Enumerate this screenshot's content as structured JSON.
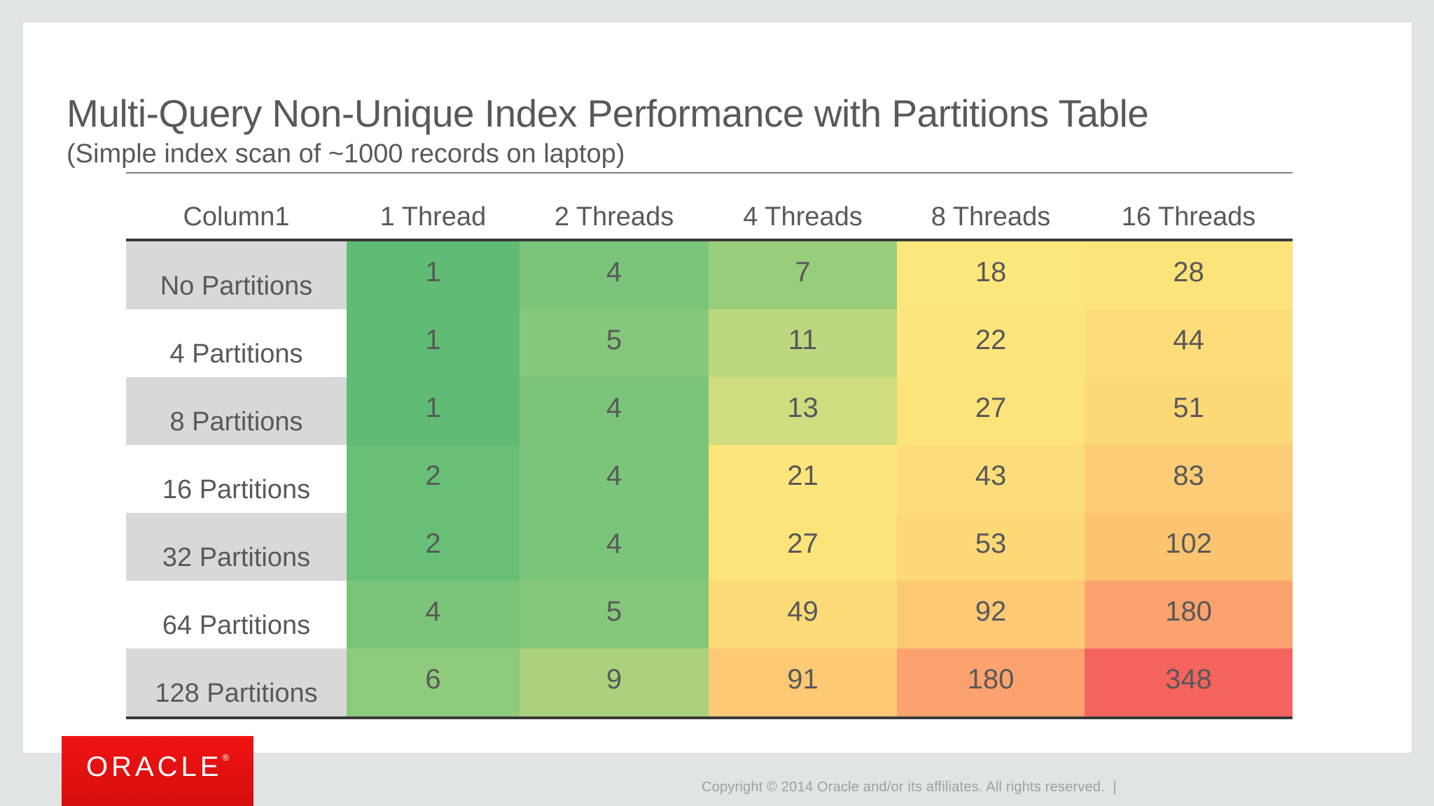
{
  "slide": {
    "title": "Multi-Query Non-Unique Index Performance with Partitions Table",
    "subtitle": "(Simple index scan of ~1000 records on laptop)"
  },
  "footer": {
    "logo_text": "ORACLE",
    "logo_mark": "®",
    "copyright": "Copyright © 2014 Oracle and/or its affiliates. All rights reserved.  |"
  },
  "colors": {
    "page_background": "#e0e4e3",
    "slide_background": "#ffffff",
    "text": "#595959",
    "table_rule": "#3a3a3a",
    "title_rule": "#7f7f7f",
    "row_label_gray": "#d8d8d8",
    "oracle_red": "#e31212",
    "copyright_text": "#9aa2a2",
    "heat_scale_low": "#60bc74",
    "heat_scale_mid": "#fce77c",
    "heat_scale_high": "#f6645f"
  },
  "chart_data": {
    "type": "heatmap",
    "title": "Multi-Query Non-Unique Index Performance with Partitions Table",
    "subtitle": "(Simple index scan of ~1000 records on laptop)",
    "columns": [
      "Column1",
      "1 Thread",
      "2 Threads",
      "4 Threads",
      "8 Threads",
      "16 Threads"
    ],
    "row_labels": [
      "No Partitions",
      "4 Partitions",
      "8 Partitions",
      "16 Partitions",
      "32 Partitions",
      "64 Partitions",
      "128 Partitions"
    ],
    "values": [
      [
        1,
        4,
        7,
        18,
        28
      ],
      [
        1,
        5,
        11,
        22,
        44
      ],
      [
        1,
        4,
        13,
        27,
        51
      ],
      [
        2,
        4,
        21,
        43,
        83
      ],
      [
        2,
        4,
        27,
        53,
        102
      ],
      [
        4,
        5,
        49,
        92,
        180
      ],
      [
        6,
        9,
        91,
        180,
        348
      ]
    ],
    "value_range": [
      1,
      348
    ],
    "legend": "none",
    "grid": "off",
    "colorscale": {
      "low": "#60bc74",
      "mid": "#fce77c",
      "high": "#f6645f",
      "midpoint_value": 18
    },
    "cell_colors": [
      [
        "#60bc74",
        "#7bc57a",
        "#98cd7c",
        "#fce77c",
        "#fce37a"
      ],
      [
        "#60bc74",
        "#85c87b",
        "#bdd77f",
        "#fce57b",
        "#fddd79"
      ],
      [
        "#60bc74",
        "#7bc57a",
        "#cfdc80",
        "#fce37a",
        "#fcd977"
      ],
      [
        "#68bf76",
        "#7bc57a",
        "#fce67b",
        "#fddd79",
        "#fccc76"
      ],
      [
        "#68bf76",
        "#7bc57a",
        "#fce37a",
        "#fcd877",
        "#fcc471"
      ],
      [
        "#7bc57a",
        "#85c87b",
        "#fcda78",
        "#fcc974",
        "#fba26e"
      ],
      [
        "#8eca7c",
        "#aad27e",
        "#fcc974",
        "#fba26e",
        "#f6645f"
      ]
    ],
    "row_label_fills": [
      "#d8d8d8",
      "#ffffff",
      "#d8d8d8",
      "#ffffff",
      "#d8d8d8",
      "#ffffff",
      "#d8d8d8"
    ]
  }
}
